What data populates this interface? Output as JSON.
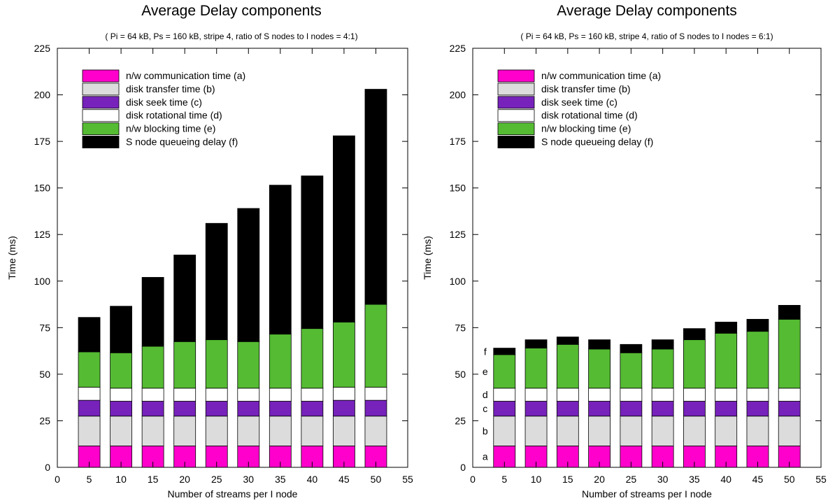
{
  "chart_data": [
    {
      "type": "bar",
      "stacked": true,
      "title": "Average Delay components",
      "subtitle": "( Pi = 64 kB, Ps = 160 kB, stripe 4, ratio of S nodes to I nodes = 4:1)",
      "xlabel": "Number of streams per I node",
      "ylabel": "Time (ms)",
      "xlim": [
        0,
        55
      ],
      "ylim": [
        0,
        225
      ],
      "xticks": [
        0,
        5,
        10,
        15,
        20,
        25,
        30,
        35,
        40,
        45,
        50,
        55
      ],
      "yticks": [
        0,
        25,
        50,
        75,
        100,
        125,
        150,
        175,
        200,
        225
      ],
      "legend_position": "top-left",
      "x": [
        5,
        10,
        15,
        20,
        25,
        30,
        35,
        40,
        45,
        50
      ],
      "series": [
        {
          "name": "n/w communication time (a)",
          "color": "#ff00cc",
          "values": [
            11.5,
            11.5,
            11.5,
            11.5,
            11.5,
            11.5,
            11.5,
            11.5,
            11.5,
            11.5
          ]
        },
        {
          "name": "disk  transfer time (b)",
          "color": "#dcdcdc",
          "values": [
            16,
            16,
            16,
            16,
            16,
            16,
            16,
            16,
            16,
            16
          ]
        },
        {
          "name": "disk seek  time (c)",
          "color": "#7722bb",
          "values": [
            8.5,
            8,
            8,
            8,
            8,
            8,
            8,
            8,
            8.5,
            8.5
          ]
        },
        {
          "name": "disk rotational time (d)",
          "color": "#ffffff",
          "values": [
            7,
            7,
            7,
            7,
            7,
            7,
            7,
            7,
            7,
            7
          ]
        },
        {
          "name": "n/w blocking time (e)",
          "color": "#55bb33",
          "values": [
            19,
            19,
            22.5,
            25,
            26,
            25,
            29,
            32,
            35,
            44.5
          ]
        },
        {
          "name": "S node queueing delay (f)",
          "color": "#000000",
          "values": [
            18.5,
            25,
            37,
            46.5,
            62.5,
            71.5,
            80,
            82,
            100,
            115.5
          ]
        }
      ],
      "segment_labels": []
    },
    {
      "type": "bar",
      "stacked": true,
      "title": "Average Delay components",
      "subtitle": "( Pi = 64 kB, Ps = 160 kB, stripe 4, ratio of S nodes to I nodes = 6:1)",
      "xlabel": "Number of streams per I node",
      "ylabel": "Time (ms)",
      "xlim": [
        0,
        55
      ],
      "ylim": [
        0,
        225
      ],
      "xticks": [
        0,
        5,
        10,
        15,
        20,
        25,
        30,
        35,
        40,
        45,
        50,
        55
      ],
      "yticks": [
        0,
        25,
        50,
        75,
        100,
        125,
        150,
        175,
        200,
        225
      ],
      "legend_position": "top-left",
      "x": [
        5,
        10,
        15,
        20,
        25,
        30,
        35,
        40,
        45,
        50
      ],
      "series": [
        {
          "name": "n/w communication time (a)",
          "color": "#ff00cc",
          "values": [
            11.5,
            11.5,
            11.5,
            11.5,
            11.5,
            11.5,
            11.5,
            11.5,
            11.5,
            11.5
          ]
        },
        {
          "name": "disk  transfer time (b)",
          "color": "#dcdcdc",
          "values": [
            16,
            16,
            16,
            16,
            16,
            16,
            16,
            16,
            16,
            16
          ]
        },
        {
          "name": "disk seek  time (c)",
          "color": "#7722bb",
          "values": [
            8,
            8,
            8,
            8,
            8,
            8,
            8,
            8,
            8,
            8
          ]
        },
        {
          "name": "disk rotational time (d)",
          "color": "#ffffff",
          "values": [
            7,
            7,
            7,
            7,
            7,
            7,
            7,
            7,
            7,
            7
          ]
        },
        {
          "name": "n/w blocking time (e)",
          "color": "#55bb33",
          "values": [
            18,
            21.5,
            23.5,
            21,
            19,
            21,
            26,
            29.5,
            30.5,
            37
          ]
        },
        {
          "name": "S node queueing delay (f)",
          "color": "#000000",
          "values": [
            3.5,
            4.5,
            4,
            5,
            4.5,
            5,
            6,
            6,
            6.5,
            7.5
          ]
        }
      ],
      "segment_labels": [
        "a",
        "b",
        "c",
        "d",
        "e",
        "f"
      ]
    }
  ]
}
